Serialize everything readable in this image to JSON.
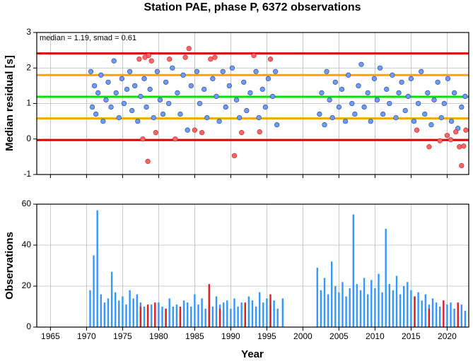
{
  "chart_data": [
    {
      "type": "scatter",
      "title": "Station PAE, phase P, 6372 observations",
      "ylabel": "Median residual [s]",
      "annotation": "median = 1.19, smad = 0.61",
      "xlim": [
        1963.1,
        2023
      ],
      "xticks": [
        1965,
        1970,
        1975,
        1980,
        1985,
        1990,
        1995,
        2000,
        2005,
        2010,
        2015,
        2020
      ],
      "ylim": [
        -1,
        3
      ],
      "yticks": [
        -1,
        0,
        1,
        2,
        3
      ],
      "grid": true,
      "hlines": [
        {
          "value": 2.41,
          "color": "#e00000"
        },
        {
          "value": 1.8,
          "color": "#ffa500"
        },
        {
          "value": 1.19,
          "color": "#00e000"
        },
        {
          "value": 0.58,
          "color": "#ffa500"
        },
        {
          "value": -0.03,
          "color": "#e00000"
        }
      ],
      "series": [
        {
          "color": "#6f9cf0",
          "edge": "#2a4fa8",
          "x": [
            1970.6,
            1970.8,
            1971.1,
            1971.3,
            1971.6,
            1972,
            1972.3,
            1972.7,
            1973,
            1973.4,
            1973.8,
            1974.1,
            1974.5,
            1974.9,
            1975.2,
            1975.6,
            1976,
            1976.3,
            1976.7,
            1977.1,
            1977.5,
            1978,
            1978.3,
            1978.8,
            1979.3,
            1979.8,
            1980.2,
            1980.6,
            1981,
            1981.4,
            1981.9,
            1982.6,
            1983,
            1983.4,
            1984,
            1984.5,
            1985.3,
            1985.7,
            1986.3,
            1986.7,
            1987.5,
            1988,
            1988.4,
            1988.9,
            1989.3,
            1989.8,
            1990.2,
            1990.8,
            1991.2,
            1991.8,
            1992.2,
            1992.7,
            1993.5,
            1993.9,
            1994.4,
            1994.8,
            1995.2,
            1995.8,
            1996.2,
            1996.4,
            2002.3,
            2002.6,
            2003,
            2003.3,
            2003.7,
            2004.1,
            2004.5,
            2005,
            2005.4,
            2005.9,
            2006.3,
            2006.8,
            2007.2,
            2007.7,
            2008.1,
            2008.5,
            2009,
            2009.4,
            2009.9,
            2010.3,
            2010.7,
            2011.1,
            2011.6,
            2012,
            2012.4,
            2012.9,
            2013.3,
            2013.7,
            2014.2,
            2014.6,
            2015,
            2015.4,
            2016,
            2016.4,
            2016.9,
            2017.3,
            2017.8,
            2018.2,
            2018.7,
            2019.2,
            2019.6,
            2020.1,
            2020.6,
            2021,
            2021.5,
            2022,
            2022.5
          ],
          "values": [
            1.9,
            0.9,
            1.5,
            0.7,
            1.3,
            1.8,
            0.5,
            1.1,
            1.6,
            0.9,
            2.2,
            1.3,
            0.6,
            1.7,
            1.0,
            1.4,
            1.9,
            0.8,
            1.5,
            0.5,
            1.2,
            1.7,
            0.9,
            1.4,
            0.6,
            1.9,
            1.1,
            0.7,
            1.6,
            1.0,
            2.0,
            1.3,
            0.7,
            1.8,
            0.25,
            1.5,
            1.9,
            1.0,
            1.4,
            0.6,
            1.7,
            1.2,
            0.5,
            1.9,
            0.9,
            1.5,
            2.0,
            1.1,
            0.6,
            1.6,
            0.8,
            1.3,
            1.9,
            0.6,
            1.4,
            0.9,
            1.7,
            1.2,
            1.9,
            0.4,
            0.7,
            1.3,
            0.4,
            1.9,
            1.1,
            0.6,
            1.6,
            0.9,
            1.4,
            0.5,
            1.8,
            1.0,
            0.7,
            1.5,
            2.1,
            0.9,
            1.3,
            0.5,
            1.7,
            1.1,
            2.0,
            0.7,
            1.4,
            1.0,
            1.8,
            0.6,
            1.3,
            1.6,
            0.8,
            1.2,
            1.7,
            0.5,
            1.0,
            1.9,
            0.7,
            1.3,
            0.4,
            1.1,
            1.6,
            0.6,
            1.0,
            1.7,
            0.5,
            1.3,
            0.3,
            0.9,
            1.2
          ]
        },
        {
          "color": "#ff6666",
          "edge": "#c03030",
          "x": [
            1977.3,
            1978.1,
            1978.6,
            1979,
            1977.8,
            1978.5,
            1979.6,
            1981.5,
            1982.3,
            1983.7,
            1984.2,
            1985,
            1986,
            1987.2,
            1987.8,
            1990.5,
            1991.5,
            1993.2,
            1994,
            1995.5,
            2015.8,
            2017.5,
            2019,
            2020,
            2020.5,
            2021.2,
            2021.7,
            2022,
            2022.3,
            2022.6
          ],
          "values": [
            2.25,
            2.3,
            2.35,
            2.2,
            0.0,
            -0.63,
            0.18,
            2.25,
            0.0,
            2.3,
            2.55,
            0.25,
            0.18,
            2.25,
            2.3,
            -0.47,
            0.18,
            2.35,
            0.2,
            2.25,
            0.25,
            -0.22,
            -0.05,
            0.1,
            -0.02,
            0.2,
            -0.22,
            -0.75,
            -0.2,
            0.25
          ]
        }
      ]
    },
    {
      "type": "bar",
      "ylabel": "Observations",
      "xlabel": "Year",
      "xlim": [
        1963.1,
        2023
      ],
      "xticks": [
        1965,
        1970,
        1975,
        1980,
        1985,
        1990,
        1995,
        2000,
        2005,
        2010,
        2015,
        2020
      ],
      "ylim": [
        0,
        60
      ],
      "yticks": [
        0,
        20,
        40,
        60
      ],
      "grid": true,
      "series": [
        {
          "color": "#3399ff",
          "x": [
            1970.5,
            1971,
            1971.5,
            1972,
            1972.5,
            1973,
            1973.5,
            1974,
            1974.5,
            1975,
            1975.5,
            1976,
            1976.5,
            1977,
            1977.5,
            1978,
            1978.5,
            1979,
            1979.5,
            1980,
            1980.5,
            1981,
            1981.5,
            1982,
            1982.5,
            1983,
            1983.5,
            1984,
            1984.5,
            1985,
            1985.5,
            1986,
            1986.5,
            1987,
            1987.5,
            1988,
            1988.5,
            1989,
            1989.5,
            1990,
            1990.5,
            1991,
            1991.5,
            1992,
            1992.5,
            1993,
            1993.5,
            1994,
            1994.5,
            1995,
            1995.5,
            1996,
            1996.5,
            1997.2,
            2002,
            2002.5,
            2003,
            2003.5,
            2004,
            2004.5,
            2005,
            2005.5,
            2006,
            2006.5,
            2007,
            2007.5,
            2008,
            2008.5,
            2009,
            2009.5,
            2010,
            2010.5,
            2011,
            2011.5,
            2012,
            2012.5,
            2013,
            2013.5,
            2014,
            2014.5,
            2015,
            2015.5,
            2016,
            2016.5,
            2017,
            2017.5,
            2018,
            2018.5,
            2019,
            2019.5,
            2020,
            2020.5,
            2021,
            2021.5,
            2022,
            2022.5
          ],
          "values": [
            18,
            35,
            57,
            16,
            12,
            14,
            27,
            17,
            13,
            15,
            11,
            18,
            14,
            16,
            12,
            10,
            9,
            11,
            8,
            12,
            10,
            9,
            14,
            10,
            11,
            8,
            13,
            12,
            10,
            16,
            11,
            14,
            9,
            12,
            10,
            15,
            11,
            12,
            13,
            9,
            14,
            10,
            12,
            11,
            15,
            13,
            10,
            17,
            12,
            14,
            11,
            13,
            9,
            14,
            29,
            18,
            24,
            16,
            32,
            20,
            17,
            22,
            15,
            19,
            55,
            21,
            18,
            24,
            16,
            23,
            19,
            26,
            17,
            48,
            21,
            18,
            25,
            16,
            20,
            22,
            18,
            15,
            17,
            13,
            16,
            11,
            14,
            12,
            10,
            13,
            11,
            12,
            9,
            10,
            11,
            8
          ]
        },
        {
          "color": "#e02020",
          "x": [
            1977.5,
            1978.5,
            1979.5,
            1981,
            1983,
            1987,
            1988.5,
            1992,
            1995.5,
            2015.5,
            2017.5,
            2019.5,
            2021.5
          ],
          "values": [
            10,
            11,
            12,
            9,
            10,
            21,
            9,
            12,
            16,
            15,
            9,
            13,
            12
          ]
        }
      ]
    }
  ]
}
